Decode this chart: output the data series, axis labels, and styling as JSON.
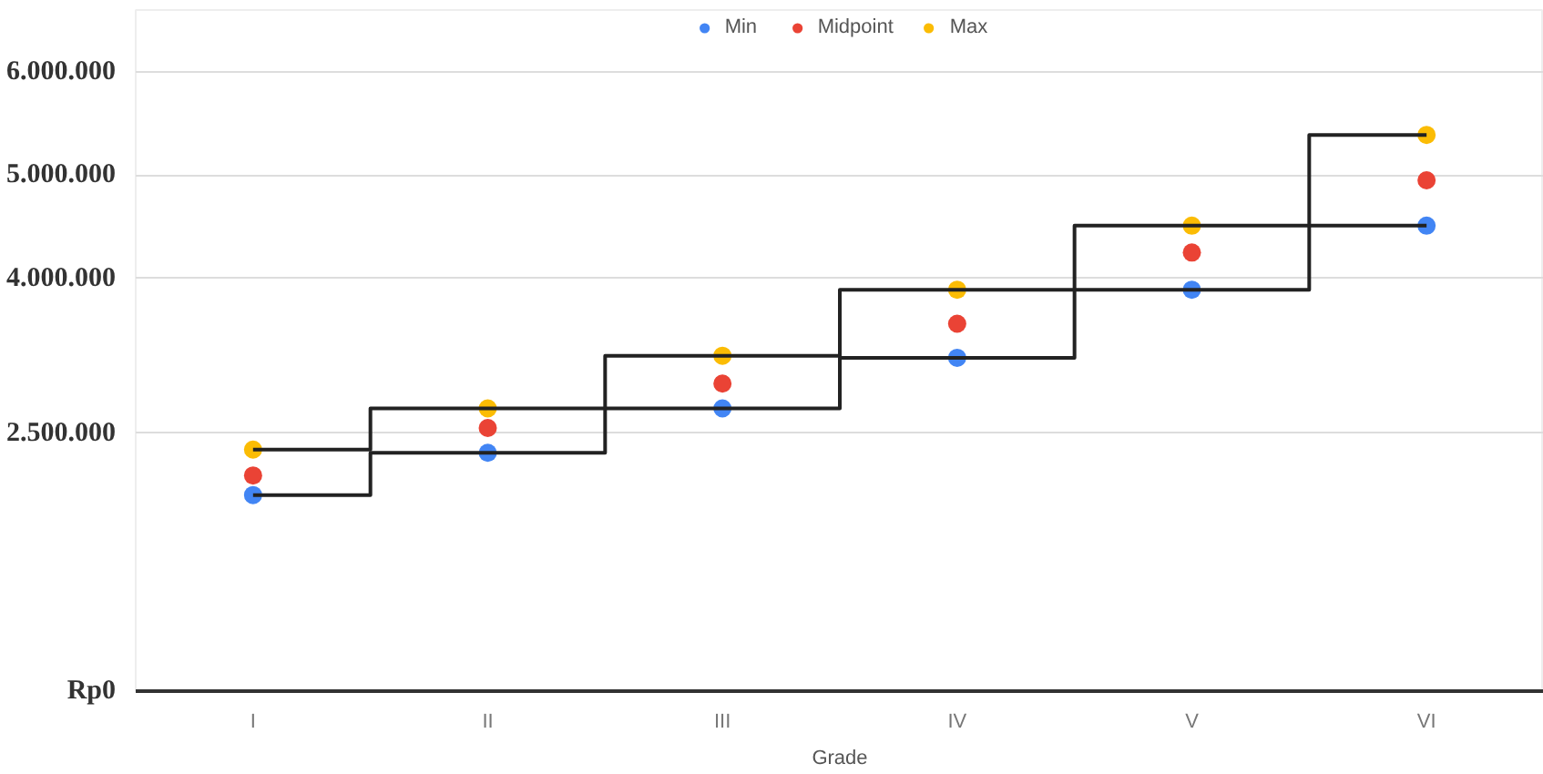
{
  "chart_data": {
    "type": "scatter",
    "xlabel": "Grade",
    "categories": [
      "I",
      "II",
      "III",
      "IV",
      "V",
      "VI"
    ],
    "series": [
      {
        "name": "Min",
        "color": "#4285f4",
        "values": [
          1900000,
          2310000,
          2740000,
          3230000,
          3890000,
          4510000
        ]
      },
      {
        "name": "Midpoint",
        "color": "#ea4335",
        "values": [
          2090000,
          2550000,
          2980000,
          3560000,
          4250000,
          4950000
        ]
      },
      {
        "name": "Max",
        "color": "#fbbc04",
        "values": [
          2340000,
          2740000,
          3250000,
          3890000,
          4510000,
          5390000
        ]
      },
      {
        "type": "step",
        "marker": "none",
        "color": "#222222",
        "values": [
          1900000,
          2310000,
          2740000,
          3230000,
          3890000,
          4510000
        ]
      },
      {
        "type": "step",
        "marker": "none",
        "color": "#222222",
        "values": [
          2340000,
          2740000,
          3250000,
          3890000,
          4510000,
          5390000
        ]
      }
    ],
    "ylim": [
      0,
      6600000
    ],
    "yticks": [
      {
        "value": 0,
        "label": "Rp0"
      },
      {
        "value": 2500000,
        "label": "2.500.000"
      },
      {
        "value": 4000000,
        "label": "4.000.000"
      },
      {
        "value": 5000000,
        "label": "5.000.000"
      },
      {
        "value": 6000000,
        "label": "6.000.000"
      }
    ],
    "grid": "y",
    "legend": "top",
    "marker": "circle"
  }
}
